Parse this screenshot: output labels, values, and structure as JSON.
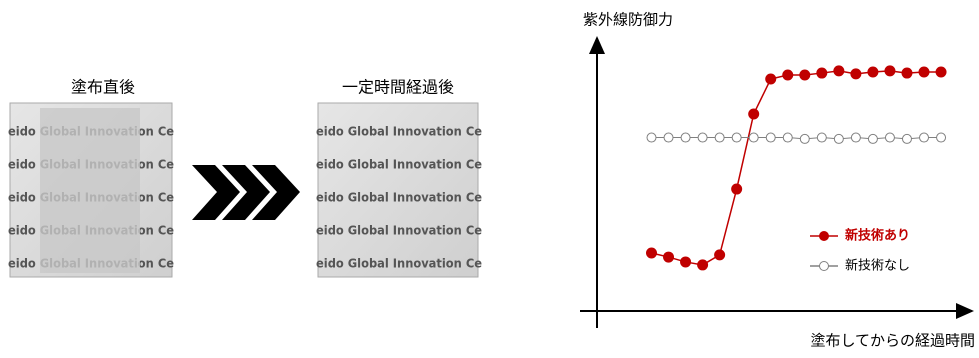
{
  "panels": [
    {
      "label": "塗布直後",
      "photo_text": [
        "eido Global Innovation Ce",
        "eido Global Innovation Ce",
        "eido Global Innovation Ce",
        "eido Global Innovation Ce",
        "eido Global Innovation Ce"
      ]
    },
    {
      "label": "一定時間経過後",
      "photo_text": [
        "eido Global Innovation Ce",
        "eido Global Innovation Ce",
        "eido Global Innovation Ce",
        "eido Global Innovation Ce",
        "eido Global Innovation Ce"
      ]
    }
  ],
  "chart_data": {
    "type": "line",
    "y_label": "紫外線防御力",
    "x_label": "塗布してからの経過時間",
    "xlim": [
      -2.2,
      19.7
    ],
    "ylim": [
      0,
      100
    ],
    "series": [
      {
        "name": "新技術あり",
        "color": "#c00000",
        "marker": "filled",
        "x": [
          1,
          2,
          3,
          4,
          5,
          6,
          7,
          8,
          9,
          10,
          11,
          12,
          13,
          14,
          15,
          16,
          17,
          18
        ],
        "values": [
          21.4,
          19.9,
          18.1,
          17,
          20.7,
          45,
          72.7,
          85.6,
          87.1,
          87.1,
          87.8,
          88.6,
          87.5,
          88.2,
          88.6,
          87.8,
          88.2,
          88.2
        ]
      },
      {
        "name": "新技術なし",
        "color": "#808080",
        "marker": "open",
        "x": [
          1,
          2,
          3,
          4,
          5,
          6,
          7,
          8,
          9,
          10,
          11,
          12,
          13,
          14,
          15,
          16,
          17,
          18
        ],
        "values": [
          64,
          64,
          64,
          64,
          64,
          64,
          64,
          64,
          64,
          63.5,
          64,
          63.5,
          64,
          63.5,
          64,
          63.5,
          64,
          64
        ]
      }
    ]
  }
}
